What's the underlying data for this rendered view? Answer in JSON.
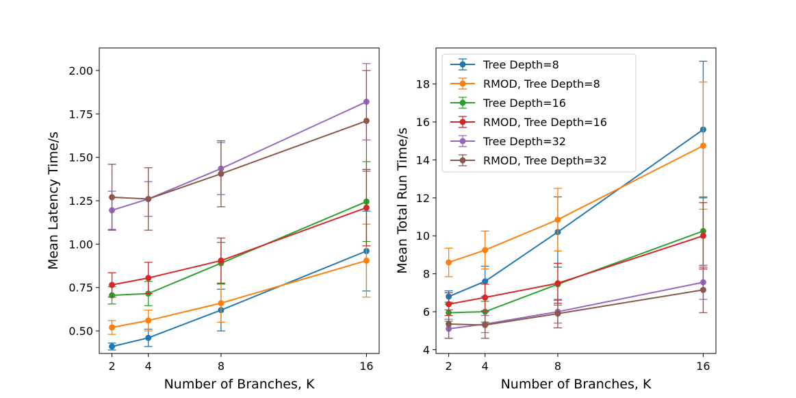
{
  "chart_data": [
    {
      "type": "line",
      "title": "",
      "xlabel": "Number of Branches, K",
      "ylabel": "Mean Latency Time/s",
      "x": [
        2,
        4,
        8,
        16
      ],
      "xticks": [
        "2",
        "4",
        "8",
        "16"
      ],
      "xlim": [
        1.3,
        16.7
      ],
      "ylim": [
        0.37,
        2.13
      ],
      "yticks": [
        "0.50",
        "0.75",
        "1.00",
        "1.25",
        "1.50",
        "1.75",
        "2.00"
      ],
      "ytick_values": [
        0.5,
        0.75,
        1.0,
        1.25,
        1.5,
        1.75,
        2.0
      ],
      "legend": null,
      "grid": false,
      "series": [
        {
          "name": "Tree Depth=8",
          "color": "#1f77b4",
          "values": [
            0.41,
            0.46,
            0.62,
            0.96
          ],
          "errors": [
            0.02,
            0.05,
            0.12,
            0.23
          ]
        },
        {
          "name": "RMOD, Tree Depth=8",
          "color": "#ff7f0e",
          "values": [
            0.52,
            0.56,
            0.66,
            0.905
          ],
          "errors": [
            0.04,
            0.06,
            0.11,
            0.21
          ]
        },
        {
          "name": "Tree Depth=16",
          "color": "#2ca02c",
          "values": [
            0.705,
            0.715,
            0.89,
            1.245
          ],
          "errors": [
            0.05,
            0.07,
            0.12,
            0.23
          ]
        },
        {
          "name": "RMOD, Tree Depth=16",
          "color": "#d62728",
          "values": [
            0.765,
            0.805,
            0.905,
            1.21
          ],
          "errors": [
            0.07,
            0.09,
            0.13,
            0.22
          ]
        },
        {
          "name": "Tree Depth=32",
          "color": "#9467bd",
          "values": [
            1.195,
            1.26,
            1.435,
            1.82
          ],
          "errors": [
            0.11,
            0.1,
            0.15,
            0.22
          ]
        },
        {
          "name": "RMOD, Tree Depth=32",
          "color": "#8c564b",
          "values": [
            1.27,
            1.26,
            1.405,
            1.71
          ],
          "errors": [
            0.19,
            0.18,
            0.19,
            0.29
          ]
        }
      ]
    },
    {
      "type": "line",
      "title": "",
      "xlabel": "Number of Branches, K",
      "ylabel": "Mean Total Run Time/s",
      "x": [
        2,
        4,
        8,
        16
      ],
      "xticks": [
        "2",
        "4",
        "8",
        "16"
      ],
      "xlim": [
        1.3,
        16.7
      ],
      "ylim": [
        3.8,
        19.9
      ],
      "yticks": [
        "4",
        "6",
        "8",
        "10",
        "12",
        "14",
        "16",
        "18"
      ],
      "ytick_values": [
        4,
        6,
        8,
        10,
        12,
        14,
        16,
        18
      ],
      "legend": "top-left",
      "grid": false,
      "series": [
        {
          "name": "Tree Depth=8",
          "color": "#1f77b4",
          "values": [
            6.8,
            7.6,
            10.2,
            15.6
          ],
          "errors": [
            0.3,
            0.8,
            1.85,
            3.6
          ]
        },
        {
          "name": "RMOD, Tree Depth=8",
          "color": "#ff7f0e",
          "values": [
            8.6,
            9.25,
            10.85,
            14.75
          ],
          "errors": [
            0.75,
            1.0,
            1.65,
            3.35
          ]
        },
        {
          "name": "Tree Depth=16",
          "color": "#2ca02c",
          "values": [
            5.95,
            6.0,
            7.45,
            10.25
          ],
          "errors": [
            0.45,
            0.55,
            1.1,
            1.8
          ]
        },
        {
          "name": "RMOD, Tree Depth=16",
          "color": "#d62728",
          "values": [
            6.4,
            6.75,
            7.5,
            10.0
          ],
          "errors": [
            0.6,
            0.7,
            1.05,
            1.75
          ]
        },
        {
          "name": "Tree Depth=32",
          "color": "#9467bd",
          "values": [
            5.1,
            5.35,
            6.0,
            7.55
          ],
          "errors": [
            0.5,
            0.45,
            0.6,
            0.9
          ]
        },
        {
          "name": "RMOD, Tree Depth=32",
          "color": "#8c564b",
          "values": [
            5.35,
            5.3,
            5.9,
            7.15
          ],
          "errors": [
            0.75,
            0.7,
            0.75,
            1.2
          ]
        }
      ]
    }
  ]
}
